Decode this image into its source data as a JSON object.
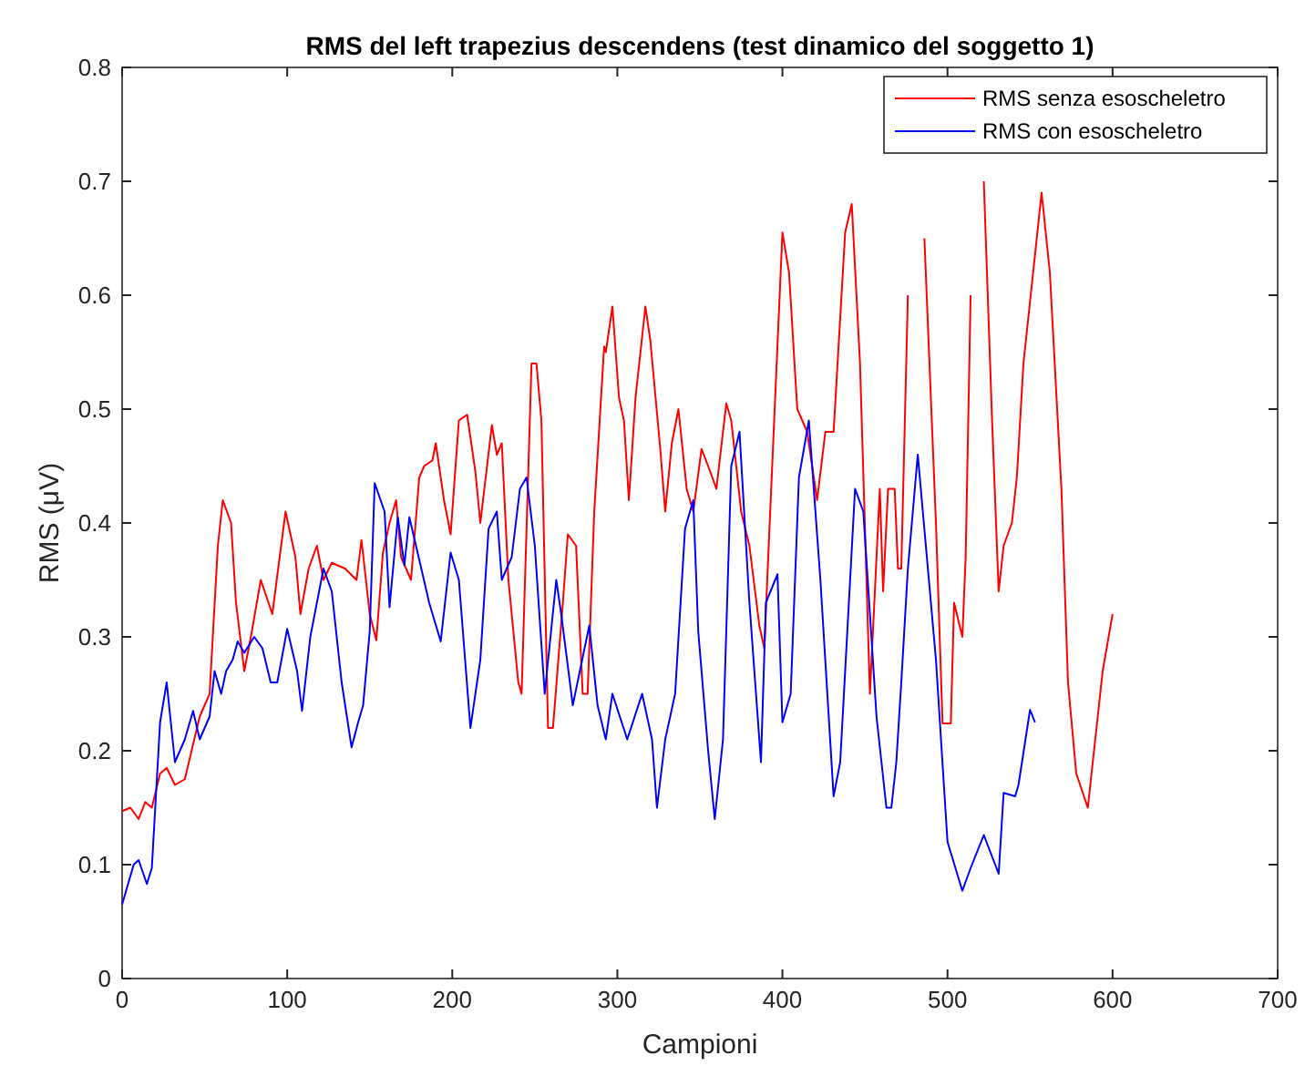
{
  "chart_data": {
    "type": "line",
    "title": "RMS del left trapezius descendens (test dinamico del soggetto 1)",
    "xlabel": "Campioni",
    "ylabel": "RMS (μV)",
    "xlim": [
      0,
      700
    ],
    "xticks": [
      0,
      100,
      200,
      300,
      400,
      500,
      600,
      700
    ],
    "ylim": [
      0,
      0.8
    ],
    "yticks": [
      0,
      0.1,
      0.2,
      0.3,
      0.4,
      0.5,
      0.6,
      0.7,
      0.8
    ],
    "legend": "top right",
    "grid": false,
    "marker": "none",
    "line_style": "solid",
    "series": [
      {
        "name": "RMS senza esoscheletro",
        "color": "#ff0000",
        "x": [
          0,
          5,
          10,
          14,
          18,
          23,
          27,
          32,
          38,
          47,
          53,
          58,
          61,
          66,
          69,
          74,
          78,
          84,
          91,
          99,
          105,
          108,
          113,
          118,
          122,
          127,
          135,
          142,
          145,
          150,
          154,
          158,
          162,
          166,
          169,
          175,
          180,
          183,
          188,
          190,
          195,
          199,
          204,
          209,
          214,
          217,
          224,
          227,
          230,
          234,
          240,
          242,
          248,
          251,
          254,
          258,
          261,
          267,
          270,
          275,
          279,
          282,
          286,
          292,
          293,
          297,
          301,
          304,
          307,
          311,
          317,
          320,
          326,
          329,
          333,
          337,
          342,
          346,
          351,
          355,
          360,
          366,
          369,
          375,
          380,
          386,
          389,
          395,
          400,
          404,
          409,
          415,
          421,
          426,
          431,
          438,
          442,
          447,
          453,
          459,
          461,
          464,
          468,
          470,
          472,
          476,
          482,
          486,
          493,
          497,
          502,
          504,
          509,
          511,
          514,
          518,
          522,
          527,
          531,
          534,
          539,
          542,
          546,
          557,
          562,
          569,
          573,
          578,
          585,
          594,
          600
        ],
        "values": [
          0.147,
          0.15,
          0.14,
          0.155,
          0.15,
          0.18,
          0.185,
          0.17,
          0.175,
          0.23,
          0.25,
          0.38,
          0.42,
          0.4,
          0.33,
          0.27,
          0.3,
          0.35,
          0.32,
          0.41,
          0.37,
          0.32,
          0.36,
          0.38,
          0.35,
          0.365,
          0.36,
          0.35,
          0.385,
          0.32,
          0.297,
          0.374,
          0.4,
          0.42,
          0.37,
          0.35,
          0.44,
          0.45,
          0.455,
          0.47,
          0.42,
          0.39,
          0.49,
          0.495,
          0.445,
          0.4,
          0.486,
          0.46,
          0.47,
          0.35,
          0.26,
          0.25,
          0.54,
          0.54,
          0.49,
          0.22,
          0.22,
          0.33,
          0.39,
          0.38,
          0.25,
          0.25,
          0.41,
          0.555,
          0.55,
          0.59,
          0.51,
          0.49,
          0.42,
          0.51,
          0.59,
          0.56,
          0.465,
          0.41,
          0.47,
          0.5,
          0.43,
          0.41,
          0.465,
          0.45,
          0.43,
          0.505,
          0.49,
          0.41,
          0.38,
          0.31,
          0.29,
          0.49,
          0.655,
          0.62,
          0.5,
          0.48,
          0.42,
          0.48,
          0.48,
          0.655,
          0.68,
          0.54,
          0.25,
          0.43,
          0.34,
          0.43,
          0.43,
          0.36,
          0.36,
          0.6,
          null,
          0.65,
          0.4,
          0.224,
          0.224,
          0.33,
          0.3,
          0.37,
          0.6,
          null,
          0.7,
          0.49,
          0.34,
          0.38,
          0.4,
          0.44,
          0.54,
          0.69,
          0.62,
          0.43,
          0.26,
          0.18,
          0.15,
          0.27,
          0.32
        ]
      },
      {
        "name": "RMS con esoscheletro",
        "color": "#0000ff",
        "x": [
          0,
          7,
          10,
          15,
          18,
          23,
          27,
          32,
          38,
          43,
          47,
          53,
          56,
          60,
          63,
          67,
          70,
          74,
          80,
          85,
          90,
          94,
          100,
          106,
          109,
          114,
          122,
          127,
          133,
          139,
          143,
          146,
          150,
          153,
          159,
          162,
          167,
          171,
          174,
          179,
          186,
          193,
          199,
          204,
          211,
          217,
          222,
          227,
          230,
          236,
          241,
          245,
          250,
          256,
          263,
          266,
          273,
          283,
          288,
          293,
          297,
          306,
          315,
          321,
          324,
          329,
          335,
          341,
          346,
          349,
          355,
          359,
          364,
          369,
          374,
          380,
          387,
          390,
          397,
          400,
          405,
          410,
          416,
          423,
          431,
          435,
          444,
          449,
          457,
          463,
          466,
          469,
          472,
          476,
          482,
          493,
          500,
          509,
          514,
          522,
          531,
          534,
          541,
          543,
          550,
          553
        ],
        "values": [
          0.065,
          0.1,
          0.104,
          0.083,
          0.097,
          0.225,
          0.26,
          0.19,
          0.21,
          0.235,
          0.21,
          0.23,
          0.27,
          0.25,
          0.27,
          0.28,
          0.296,
          0.286,
          0.3,
          0.29,
          0.26,
          0.26,
          0.307,
          0.27,
          0.235,
          0.3,
          0.36,
          0.34,
          0.26,
          0.203,
          0.225,
          0.24,
          0.305,
          0.435,
          0.41,
          0.326,
          0.405,
          0.363,
          0.405,
          0.374,
          0.33,
          0.296,
          0.374,
          0.35,
          0.22,
          0.28,
          0.395,
          0.41,
          0.35,
          0.37,
          0.43,
          0.44,
          0.38,
          0.25,
          0.35,
          0.32,
          0.24,
          0.31,
          0.24,
          0.21,
          0.25,
          0.21,
          0.25,
          0.21,
          0.15,
          0.21,
          0.25,
          0.395,
          0.42,
          0.305,
          0.2,
          0.14,
          0.21,
          0.45,
          0.48,
          0.33,
          0.19,
          0.33,
          0.355,
          0.225,
          0.25,
          0.44,
          0.49,
          0.35,
          0.16,
          0.19,
          0.43,
          0.41,
          0.23,
          0.15,
          0.15,
          0.19,
          0.26,
          0.36,
          0.46,
          0.28,
          0.12,
          0.077,
          0.097,
          0.126,
          0.092,
          0.163,
          0.16,
          0.17,
          0.236,
          0.225
        ]
      }
    ]
  }
}
